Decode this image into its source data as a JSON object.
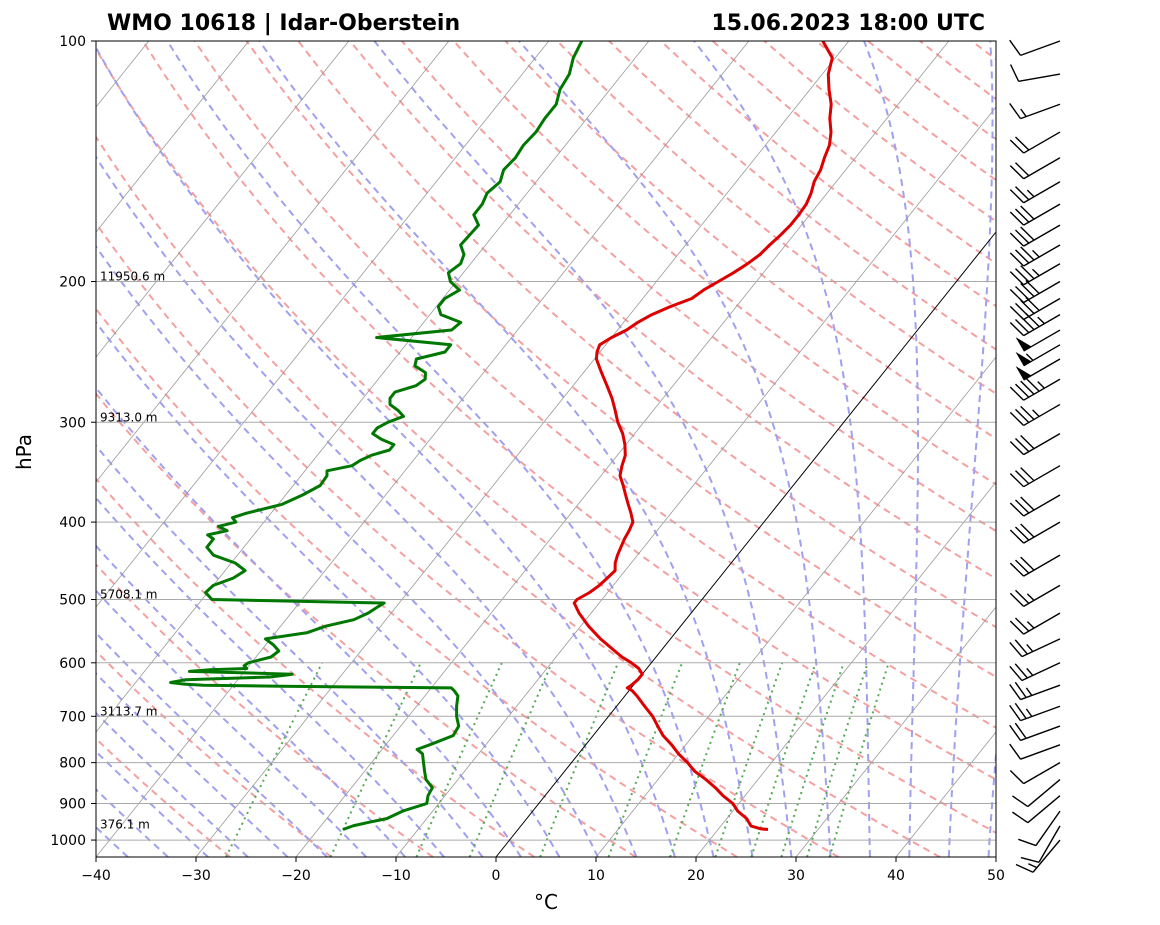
{
  "header": {
    "title_left": "WMO 10618 | Idar-Oberstein",
    "title_right": "15.06.2023 18:00 UTC"
  },
  "chart_data": {
    "type": "line",
    "subtype": "skew-t log-p sounding",
    "xlabel": "°C",
    "ylabel": "hPa",
    "xlim": [
      -40,
      50
    ],
    "ylim": [
      1000,
      100
    ],
    "y_scale": "log",
    "grid": true,
    "x_ticks": [
      -40,
      -30,
      -20,
      -10,
      0,
      10,
      20,
      30,
      40,
      50
    ],
    "x_tick_labels": [
      "−40",
      "−30",
      "−20",
      "−10",
      "0",
      "10",
      "20",
      "30",
      "40",
      "50"
    ],
    "y_ticks": [
      100,
      200,
      300,
      400,
      500,
      600,
      700,
      800,
      900,
      1000
    ],
    "y_tick_labels": [
      "100",
      "200",
      "300",
      "400",
      "500",
      "600",
      "700",
      "800",
      "900",
      "1000"
    ],
    "height_labels": [
      {
        "p": 200,
        "text": "11950.6 m"
      },
      {
        "p": 300,
        "text": "9313.0 m"
      },
      {
        "p": 500,
        "text": "5708.1 m"
      },
      {
        "p": 700,
        "text": "3113.7 m"
      },
      {
        "p": 970,
        "text": "376.1 m"
      }
    ],
    "colors": {
      "temperature": "#dd0000",
      "dewpoint": "#007700",
      "dry_adiabat": "#f4a0a0",
      "moist_adiabat": "#a0a0f0",
      "mixing_ratio": "#55aa55",
      "isotherm": "#999999",
      "isobar": "#aaaaaa",
      "zero_isotherm": "#000000"
    },
    "series": [
      {
        "name": "",
        "role": "temperature",
        "p": [
          970,
          968,
          960,
          940,
          920,
          900,
          880,
          860,
          840,
          820,
          800,
          780,
          760,
          740,
          720,
          700,
          680,
          660,
          650,
          645,
          640,
          630,
          620,
          610,
          600,
          590,
          580,
          560,
          540,
          520,
          505,
          500,
          490,
          480,
          470,
          460,
          450,
          440,
          420,
          410,
          400,
          390,
          380,
          370,
          360,
          350,
          340,
          330,
          320,
          310,
          300,
          290,
          280,
          270,
          260,
          250,
          245,
          240,
          235,
          230,
          225,
          220,
          215,
          210,
          205,
          200,
          195,
          190,
          185,
          180,
          175,
          170,
          165,
          160,
          155,
          150,
          145,
          140,
          135,
          130,
          125,
          120,
          115,
          110,
          105,
          100
        ],
        "t": [
          25.0,
          24.2,
          23.0,
          22.0,
          20.5,
          19.4,
          17.8,
          16.4,
          14.8,
          13.0,
          11.6,
          10.0,
          8.6,
          7.0,
          5.7,
          4.4,
          2.8,
          1.2,
          0.3,
          -0.4,
          -0.2,
          0.0,
          0.0,
          -0.8,
          -2.0,
          -3.4,
          -4.6,
          -7.0,
          -9.2,
          -11.2,
          -12.5,
          -12.5,
          -11.8,
          -11.4,
          -11.2,
          -11.0,
          -11.6,
          -12.0,
          -12.6,
          -12.8,
          -13.1,
          -14.0,
          -15.0,
          -16.0,
          -17.0,
          -18.1,
          -18.7,
          -19.2,
          -20.1,
          -21.2,
          -22.6,
          -23.8,
          -25.1,
          -26.6,
          -28.2,
          -29.8,
          -30.3,
          -30.6,
          -30.0,
          -29.1,
          -28.6,
          -27.8,
          -26.6,
          -25.1,
          -24.6,
          -23.8,
          -23.0,
          -22.3,
          -21.8,
          -21.6,
          -21.3,
          -21.1,
          -21.1,
          -21.2,
          -21.6,
          -22.2,
          -22.5,
          -23.1,
          -23.6,
          -24.5,
          -25.7,
          -26.7,
          -28.1,
          -29.4,
          -30.3,
          -32.6
        ]
      },
      {
        "name": "",
        "role": "dewpoint",
        "p": [
          970,
          960,
          950,
          940,
          920,
          900,
          880,
          860,
          840,
          820,
          800,
          780,
          770,
          760,
          740,
          720,
          700,
          680,
          660,
          650,
          645,
          642,
          640,
          638,
          635,
          630,
          625,
          620,
          615,
          612,
          610,
          605,
          600,
          590,
          580,
          570,
          560,
          550,
          540,
          530,
          520,
          510,
          505,
          500,
          495,
          490,
          480,
          470,
          460,
          450,
          440,
          430,
          420,
          415,
          410,
          405,
          400,
          395,
          390,
          380,
          370,
          360,
          350,
          345,
          340,
          335,
          330,
          325,
          320,
          315,
          310,
          305,
          300,
          295,
          290,
          285,
          280,
          275,
          270,
          265,
          260,
          255,
          250,
          245,
          240,
          235,
          230,
          225,
          220,
          215,
          210,
          205,
          200,
          195,
          190,
          185,
          180,
          175,
          170,
          165,
          160,
          155,
          150,
          145,
          140,
          135,
          130,
          125,
          120,
          115,
          110,
          105,
          100
        ],
        "t": [
          -17.5,
          -16.8,
          -15.5,
          -14.0,
          -13.0,
          -11.2,
          -11.7,
          -11.9,
          -13.2,
          -14.0,
          -14.8,
          -15.6,
          -16.5,
          -15.6,
          -14.0,
          -14.2,
          -15.2,
          -16.0,
          -16.7,
          -17.5,
          -18.0,
          -35.0,
          -43.0,
          -45.0,
          -46.5,
          -45.2,
          -37.0,
          -35.0,
          -45.5,
          -43.6,
          -40.0,
          -40.5,
          -40.3,
          -38.5,
          -38.2,
          -39.2,
          -40.5,
          -36.8,
          -35.5,
          -33.2,
          -32.3,
          -31.8,
          -31.5,
          -49.0,
          -49.6,
          -50.2,
          -50.0,
          -48.6,
          -48.0,
          -49.6,
          -52.4,
          -53.7,
          -53.7,
          -54.6,
          -53.0,
          -54.2,
          -52.8,
          -53.5,
          -52.5,
          -49.6,
          -48.3,
          -47.3,
          -47.4,
          -47.8,
          -45.7,
          -45.3,
          -44.6,
          -43.2,
          -43.2,
          -44.9,
          -46.2,
          -46.2,
          -45.6,
          -44.5,
          -45.5,
          -46.8,
          -47.3,
          -47.3,
          -45.7,
          -45.3,
          -45.8,
          -47.4,
          -47.8,
          -45.5,
          -45.5,
          -53.5,
          -46.6,
          -46.3,
          -48.9,
          -49.8,
          -49.8,
          -49.0,
          -50.6,
          -51.5,
          -51.0,
          -51.4,
          -52.5,
          -52.4,
          -52.3,
          -53.6,
          -53.6,
          -54.0,
          -53.6,
          -54.2,
          -54.0,
          -54.2,
          -54.0,
          -54.2,
          -54.2,
          -55.0,
          -55.3,
          -56.2,
          -56.7
        ]
      }
    ],
    "wind_barbs": {
      "p": [
        1000,
        960,
        920,
        880,
        840,
        800,
        760,
        720,
        680,
        640,
        600,
        560,
        520,
        480,
        440,
        400,
        370,
        340,
        310,
        285,
        265,
        250,
        240,
        230,
        220,
        210,
        200,
        190,
        180,
        170,
        160,
        150,
        140,
        130,
        120,
        110,
        100
      ],
      "speed_kt": [
        15,
        10,
        10,
        10,
        10,
        10,
        10,
        20,
        25,
        25,
        25,
        25,
        25,
        25,
        30,
        30,
        30,
        30,
        30,
        35,
        45,
        50,
        55,
        50,
        45,
        40,
        40,
        35,
        35,
        30,
        30,
        25,
        20,
        20,
        15,
        10,
        10
      ],
      "direction_deg": [
        220,
        210,
        215,
        230,
        230,
        240,
        250,
        250,
        250,
        250,
        245,
        245,
        240,
        240,
        240,
        240,
        240,
        240,
        240,
        240,
        240,
        240,
        240,
        240,
        240,
        240,
        240,
        240,
        240,
        240,
        240,
        240,
        240,
        240,
        250,
        260,
        250
      ]
    }
  }
}
